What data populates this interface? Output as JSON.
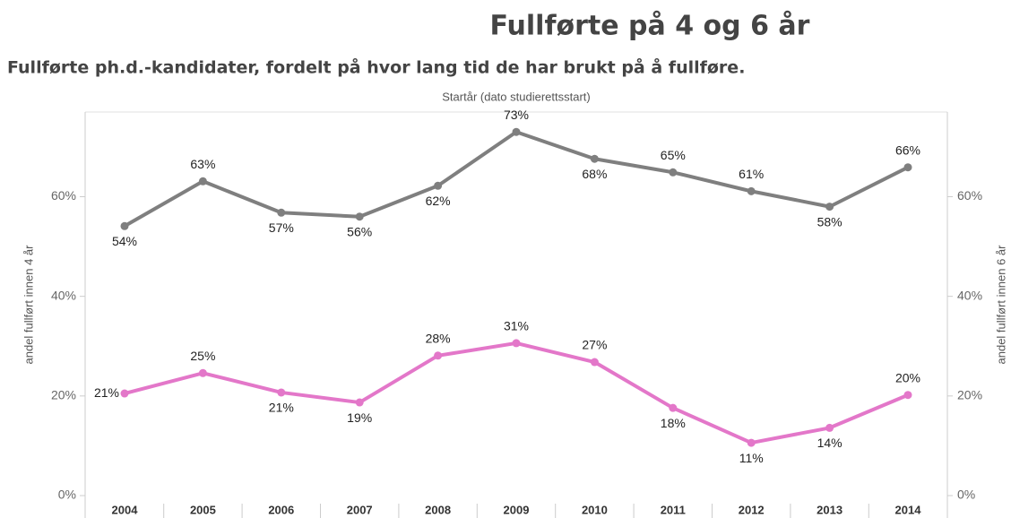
{
  "chart_data": {
    "type": "line",
    "title": "Fullførte på 4 og 6 år",
    "subtitle": "Fullførte ph.d.-kandidater, fordelt på hvor lang tid de har brukt på å fullføre.",
    "x_label": "Startår (dato studierettsstart)",
    "y_label": "andel fullført innen 4 år",
    "y2_label": "andel fullført innen 6 år",
    "categories": [
      "2004",
      "2005",
      "2006",
      "2007",
      "2008",
      "2009",
      "2010",
      "2011",
      "2012",
      "2013",
      "2014"
    ],
    "ylim": [
      0,
      77
    ],
    "yticks": [
      {
        "value": 0,
        "label": "0%"
      },
      {
        "value": 20,
        "label": "20%"
      },
      {
        "value": 40,
        "label": "40%"
      },
      {
        "value": 60,
        "label": "60%"
      }
    ],
    "y2lim": [
      0,
      77
    ],
    "y2ticks": [
      {
        "value": 0,
        "label": "0%"
      },
      {
        "value": 20,
        "label": "20%"
      },
      {
        "value": 40,
        "label": "40%"
      },
      {
        "value": 60,
        "label": "60%"
      }
    ],
    "grid": false,
    "series": [
      {
        "color": "#e377c9",
        "axis": "y",
        "values": [
          20.5,
          24.6,
          20.7,
          18.7,
          28.1,
          30.6,
          26.8,
          17.6,
          10.6,
          13.6,
          20.2
        ],
        "value_labels": [
          "21%",
          "25%",
          "21%",
          "19%",
          "28%",
          "31%",
          "27%",
          "18%",
          "11%",
          "14%",
          "20%"
        ]
      },
      {
        "color": "#7f7f7f",
        "axis": "y2",
        "values": [
          54.1,
          63.1,
          56.8,
          56.0,
          62.2,
          73.0,
          67.6,
          64.9,
          61.1,
          58.0,
          65.9
        ],
        "value_labels": [
          "54%",
          "63%",
          "57%",
          "56%",
          "62%",
          "73%",
          "68%",
          "65%",
          "61%",
          "58%",
          "66%"
        ]
      }
    ]
  }
}
